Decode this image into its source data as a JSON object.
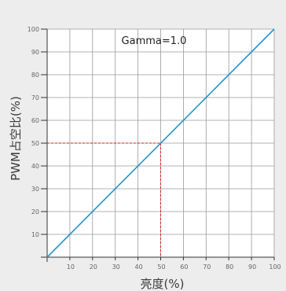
{
  "chart_data": {
    "type": "line",
    "title": "",
    "annotation": "Gamma=1.0",
    "xlabel": "亮度(%)",
    "ylabel": "PWM占空比(%)",
    "xlim": [
      0,
      100
    ],
    "ylim": [
      0,
      100
    ],
    "x_ticks": [
      10,
      20,
      30,
      40,
      50,
      60,
      70,
      80,
      90,
      100
    ],
    "y_ticks": [
      10,
      20,
      30,
      40,
      50,
      60,
      70,
      80,
      90,
      100
    ],
    "grid": true,
    "series": [
      {
        "x": [
          0,
          100
        ],
        "y": [
          0,
          100
        ],
        "color": "#1e96d2"
      }
    ],
    "reference_point": {
      "x": 50,
      "y": 50,
      "color": "#e02020",
      "style": "dashed"
    },
    "colors": {
      "plot_bg": "#ffffff",
      "page_bg": "#ededed",
      "grid": "#9a9a9a",
      "axis": "#333333"
    }
  }
}
